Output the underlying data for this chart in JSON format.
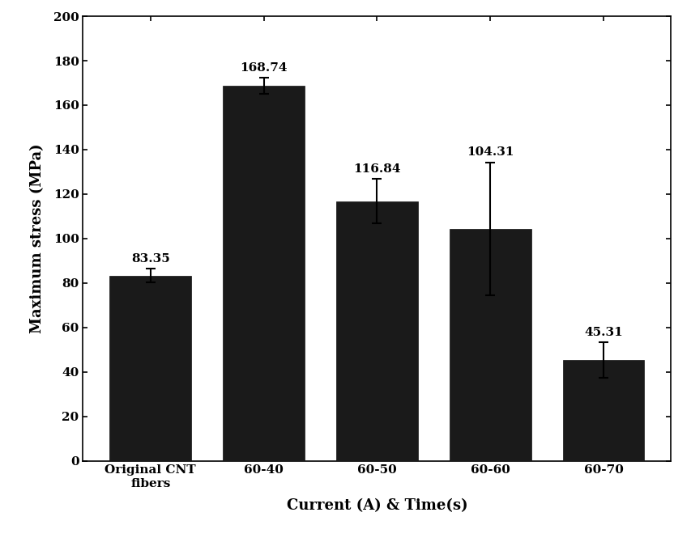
{
  "categories": [
    "Original CNT\nfibers",
    "60-40",
    "60-50",
    "60-60",
    "60-70"
  ],
  "values": [
    83.35,
    168.74,
    116.84,
    104.31,
    45.31
  ],
  "errors": [
    3.0,
    3.5,
    10.0,
    30.0,
    8.0
  ],
  "bar_color": "#1a1a1a",
  "bar_edgecolor": "#111111",
  "xlabel": "Current (A) & Time(s)",
  "ylabel": "Maximum stress (MPa)",
  "ylim": [
    0,
    200
  ],
  "yticks": [
    0,
    20,
    40,
    60,
    80,
    100,
    120,
    140,
    160,
    180,
    200
  ],
  "value_labels": [
    "83.35",
    "168.74",
    "116.84",
    "104.31",
    "45.31"
  ],
  "label_offsets": [
    2,
    2,
    2,
    2,
    2
  ],
  "figsize": [
    8.54,
    6.7
  ],
  "dpi": 100,
  "axis_label_fontsize": 13,
  "tick_fontsize": 11,
  "value_fontsize": 11,
  "bar_width": 0.72,
  "background_color": "#ffffff",
  "spine_color": "#000000",
  "errorbar_color": "#000000",
  "errorbar_capsize": 4,
  "errorbar_linewidth": 1.5,
  "errorbar_capthick": 1.5
}
